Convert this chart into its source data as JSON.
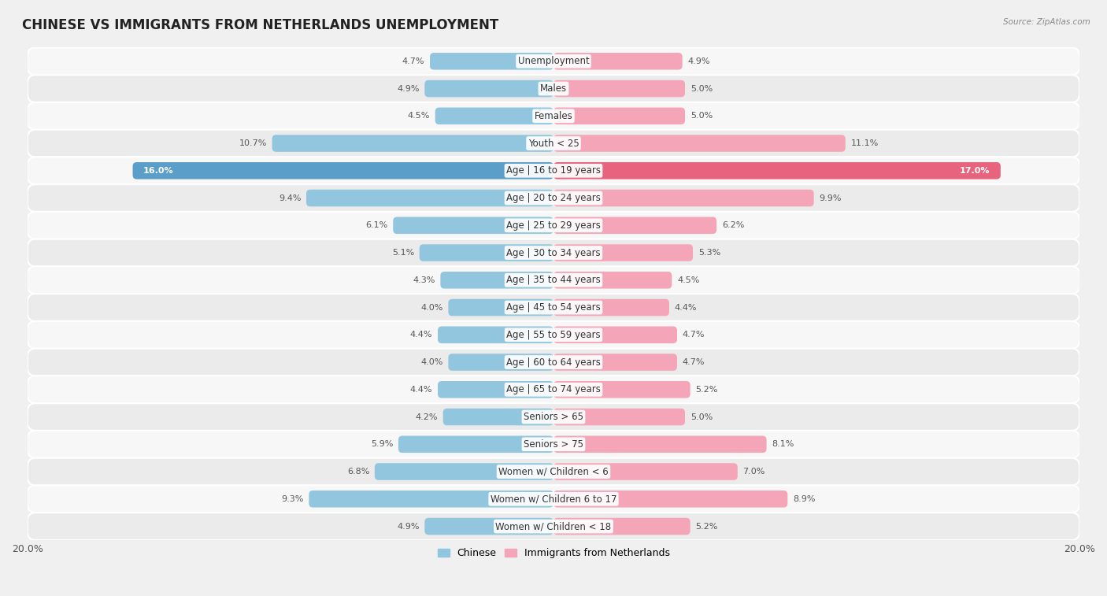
{
  "title": "CHINESE VS IMMIGRANTS FROM NETHERLANDS UNEMPLOYMENT",
  "source": "Source: ZipAtlas.com",
  "categories": [
    "Unemployment",
    "Males",
    "Females",
    "Youth < 25",
    "Age | 16 to 19 years",
    "Age | 20 to 24 years",
    "Age | 25 to 29 years",
    "Age | 30 to 34 years",
    "Age | 35 to 44 years",
    "Age | 45 to 54 years",
    "Age | 55 to 59 years",
    "Age | 60 to 64 years",
    "Age | 65 to 74 years",
    "Seniors > 65",
    "Seniors > 75",
    "Women w/ Children < 6",
    "Women w/ Children 6 to 17",
    "Women w/ Children < 18"
  ],
  "chinese": [
    4.7,
    4.9,
    4.5,
    10.7,
    16.0,
    9.4,
    6.1,
    5.1,
    4.3,
    4.0,
    4.4,
    4.0,
    4.4,
    4.2,
    5.9,
    6.8,
    9.3,
    4.9
  ],
  "netherlands": [
    4.9,
    5.0,
    5.0,
    11.1,
    17.0,
    9.9,
    6.2,
    5.3,
    4.5,
    4.4,
    4.7,
    4.7,
    5.2,
    5.0,
    8.1,
    7.0,
    8.9,
    5.2
  ],
  "chinese_color": "#92c5de",
  "netherlands_color": "#f4a6b8",
  "chinese_highlight_color": "#5b9ec9",
  "netherlands_highlight_color": "#e8637d",
  "row_bg_light": "#f7f7f7",
  "row_bg_dark": "#ebebeb",
  "chart_bg": "#f0f0f0",
  "max_val": 20.0,
  "legend_chinese": "Chinese",
  "legend_netherlands": "Immigrants from Netherlands",
  "title_fontsize": 12,
  "label_fontsize": 8.5,
  "value_fontsize": 8.0
}
